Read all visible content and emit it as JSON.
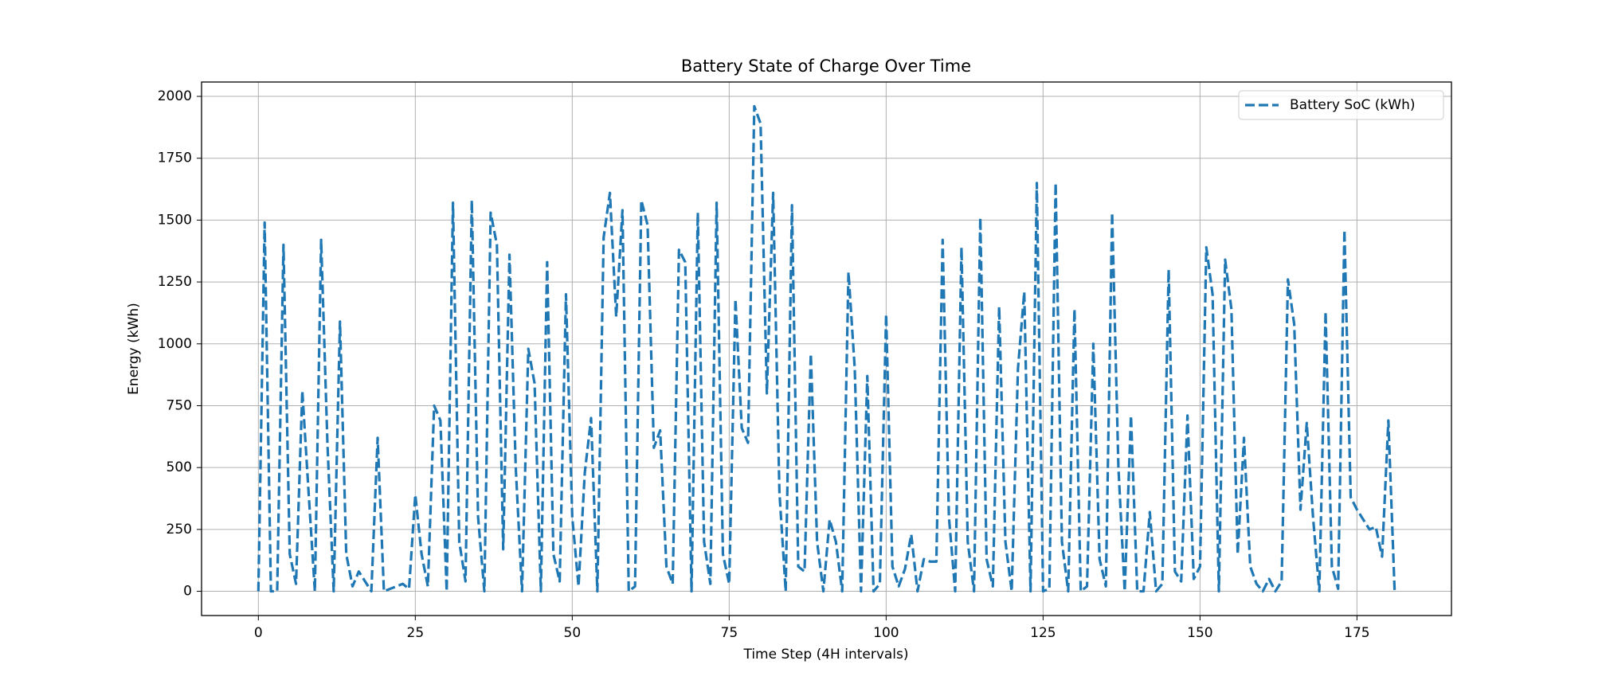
{
  "chart_data": {
    "type": "line",
    "title": "Battery State of Charge Over Time",
    "x_label": "Time Step (4H intervals)",
    "y_label": "Energy (kWh)",
    "x": [
      0,
      1,
      2,
      3,
      4,
      5,
      6,
      7,
      8,
      9,
      10,
      11,
      12,
      13,
      14,
      15,
      16,
      17,
      18,
      19,
      20,
      21,
      22,
      23,
      24,
      25,
      26,
      27,
      28,
      29,
      30,
      31,
      32,
      33,
      34,
      35,
      36,
      37,
      38,
      39,
      40,
      41,
      42,
      43,
      44,
      45,
      46,
      47,
      48,
      49,
      50,
      51,
      52,
      53,
      54,
      55,
      56,
      57,
      58,
      59,
      60,
      61,
      62,
      63,
      64,
      65,
      66,
      67,
      68,
      69,
      70,
      71,
      72,
      73,
      74,
      75,
      76,
      77,
      78,
      79,
      80,
      81,
      82,
      83,
      84,
      85,
      86,
      87,
      88,
      89,
      90,
      91,
      92,
      93,
      94,
      95,
      96,
      97,
      98,
      99,
      100,
      101,
      102,
      103,
      104,
      105,
      106,
      107,
      108,
      109,
      110,
      111,
      112,
      113,
      114,
      115,
      116,
      117,
      118,
      119,
      120,
      121,
      122,
      123,
      124,
      125,
      126,
      127,
      128,
      129,
      130,
      131,
      132,
      133,
      134,
      135,
      136,
      137,
      138,
      139,
      140,
      141,
      142,
      143,
      144,
      145,
      146,
      147,
      148,
      149,
      150,
      151,
      152,
      153,
      154,
      155,
      156,
      157,
      158,
      159,
      160,
      161,
      162,
      163,
      164,
      165,
      166,
      167,
      168,
      169,
      170,
      171,
      172,
      173,
      174,
      175,
      176,
      177,
      178,
      179,
      180,
      181
    ],
    "series": [
      {
        "name": "Battery SoC (kWh)",
        "color": "#1f77b4",
        "values": [
          0,
          1490,
          0,
          0,
          1400,
          150,
          30,
          810,
          400,
          0,
          1420,
          600,
          0,
          1090,
          150,
          20,
          80,
          40,
          0,
          620,
          0,
          10,
          20,
          30,
          10,
          390,
          150,
          20,
          750,
          690,
          0,
          1570,
          200,
          40,
          1580,
          300,
          0,
          1530,
          1400,
          170,
          1360,
          500,
          0,
          980,
          840,
          0,
          1330,
          150,
          40,
          1200,
          300,
          20,
          480,
          700,
          0,
          1430,
          1610,
          1110,
          1540,
          0,
          20,
          1580,
          1480,
          580,
          650,
          100,
          30,
          1380,
          1330,
          0,
          1530,
          200,
          30,
          1570,
          150,
          30,
          1180,
          660,
          600,
          1960,
          1890,
          800,
          1610,
          400,
          0,
          1560,
          100,
          80,
          960,
          200,
          0,
          290,
          200,
          0,
          1290,
          900,
          0,
          870,
          0,
          30,
          1120,
          100,
          20,
          90,
          230,
          0,
          130,
          120,
          120,
          1420,
          300,
          0,
          1390,
          200,
          0,
          1510,
          130,
          20,
          1150,
          200,
          0,
          900,
          1210,
          0,
          1650,
          0,
          10,
          1650,
          200,
          0,
          1140,
          0,
          20,
          1000,
          130,
          20,
          1530,
          500,
          0,
          710,
          0,
          0,
          320,
          0,
          30,
          1300,
          80,
          40,
          710,
          50,
          100,
          1390,
          1200,
          0,
          1340,
          1140,
          150,
          620,
          100,
          30,
          0,
          50,
          0,
          40,
          1260,
          1080,
          330,
          680,
          300,
          0,
          1130,
          100,
          10,
          1460,
          380,
          330,
          290,
          250,
          260,
          140,
          690,
          0
        ]
      }
    ],
    "xlim": [
      -9.05,
      190.05
    ],
    "ylim": [
      -98,
      2058
    ],
    "xticks": [
      0,
      25,
      50,
      75,
      100,
      125,
      150,
      175
    ],
    "yticks": [
      0,
      250,
      500,
      750,
      1000,
      1250,
      1500,
      1750,
      2000
    ],
    "grid": true,
    "legend_position": "upper right",
    "line_style": "dashed"
  }
}
